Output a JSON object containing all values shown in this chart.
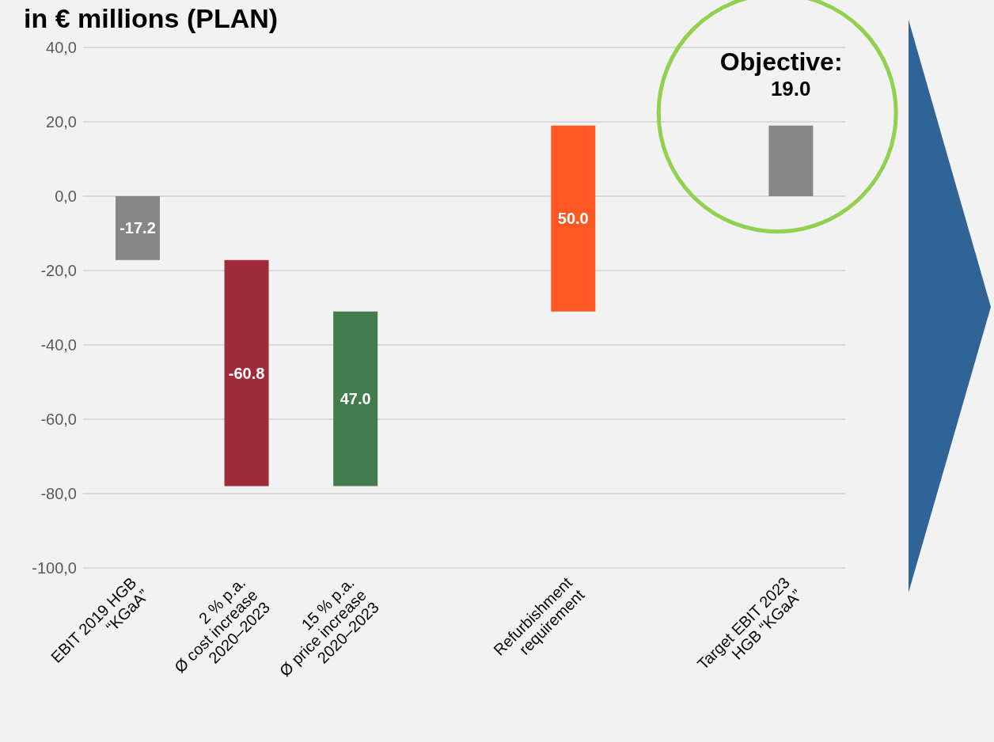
{
  "chart_data": {
    "type": "bar",
    "title": "in € millions (PLAN)",
    "categories": [
      "EBIT 2019 HGB\n“KGaA”",
      "2 % p.a.\nØ cost increase\n2020–2023",
      "15 % p.a.\nØ price increase\n2020–2023",
      null,
      "Refurbishment\nrequirement",
      null,
      "Target EBIT 2023\nHGB “KGaA”"
    ],
    "values": [
      -17.2,
      -60.8,
      47.0,
      null,
      50.0,
      null,
      19.0
    ],
    "base": [
      0,
      -17.2,
      -78.0,
      null,
      -31.0,
      null,
      0
    ],
    "colors": [
      "#878787",
      "#9e2b37",
      "#437c4d",
      null,
      "#ff5722",
      null,
      "#878787"
    ],
    "value_labels": [
      "-17.2",
      "-60.8",
      "47.0",
      null,
      "50.0",
      null,
      null
    ],
    "ylim": [
      -100,
      40
    ],
    "yticks": [
      {
        "value": -100,
        "label": "-100,0"
      },
      {
        "value": -80,
        "label": "-80,0"
      },
      {
        "value": -60,
        "label": "-60,0"
      },
      {
        "value": -40,
        "label": "-40,0"
      },
      {
        "value": -20,
        "label": "-20,0"
      },
      {
        "value": 0,
        "label": "0,0"
      },
      {
        "value": 20,
        "label": "20,0"
      },
      {
        "value": 40,
        "label": "40,0"
      }
    ],
    "grid": "y",
    "legend": false,
    "annotations": [
      {
        "text": "Objective:\n19.0",
        "x": "Target EBIT 2023\nHGB “KGaA”",
        "y": 19.0
      }
    ]
  }
}
